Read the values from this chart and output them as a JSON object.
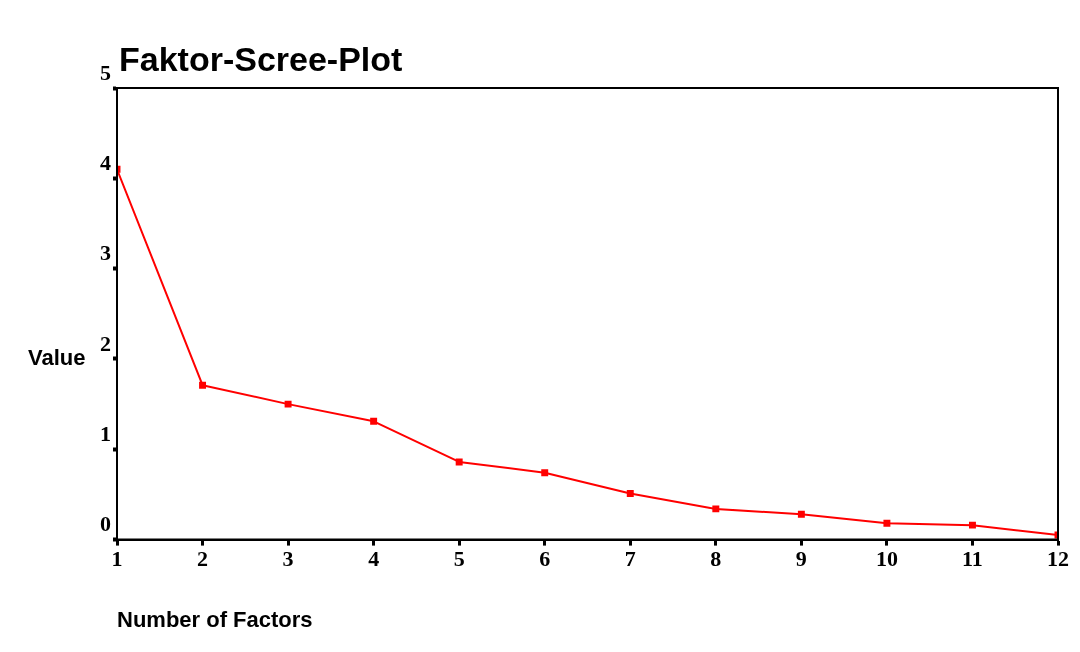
{
  "chart_data": {
    "type": "line",
    "title": "Faktor-Scree-Plot",
    "xlabel": "Number of Factors",
    "ylabel": "Value",
    "x": [
      1,
      2,
      3,
      4,
      5,
      6,
      7,
      8,
      9,
      10,
      11,
      12
    ],
    "series": [
      {
        "color": "#ff0000",
        "values": [
          4.1,
          1.71,
          1.5,
          1.31,
          0.86,
          0.74,
          0.51,
          0.34,
          0.28,
          0.18,
          0.16,
          0.05
        ]
      }
    ],
    "xlim": [
      1,
      12
    ],
    "xticks": [
      1,
      2,
      3,
      4,
      5,
      6,
      7,
      8,
      9,
      10,
      11,
      12
    ],
    "ylim": [
      0,
      5
    ],
    "yticks": [
      0,
      1,
      2,
      3,
      4,
      5
    ],
    "grid": false,
    "legend": false,
    "marker": "square",
    "line_style": "solid"
  }
}
